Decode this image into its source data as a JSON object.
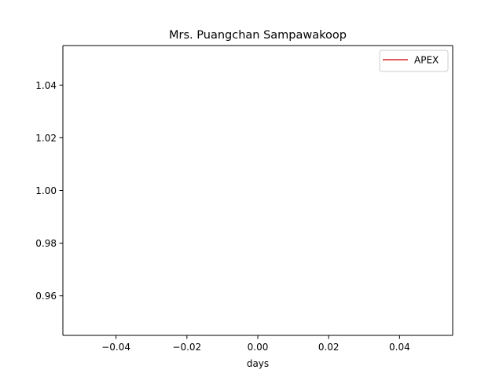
{
  "chart_data": {
    "type": "line",
    "title": "Mrs. Puangchan Sampawakoop",
    "xlabel": "days",
    "ylabel": "",
    "xlim": [
      -0.055,
      0.055
    ],
    "ylim": [
      0.945,
      1.055
    ],
    "x_ticks": [
      -0.04,
      -0.02,
      0.0,
      0.02,
      0.04
    ],
    "x_tick_labels": [
      "−0.04",
      "−0.02",
      "0.00",
      "0.02",
      "0.04"
    ],
    "y_ticks": [
      0.96,
      0.98,
      1.0,
      1.02,
      1.04
    ],
    "y_tick_labels": [
      "0.96",
      "0.98",
      "1.00",
      "1.02",
      "1.04"
    ],
    "grid": false,
    "legend_position": "upper right",
    "series": [
      {
        "name": "APEX",
        "color": "#d62728",
        "x": [],
        "y": []
      }
    ]
  }
}
